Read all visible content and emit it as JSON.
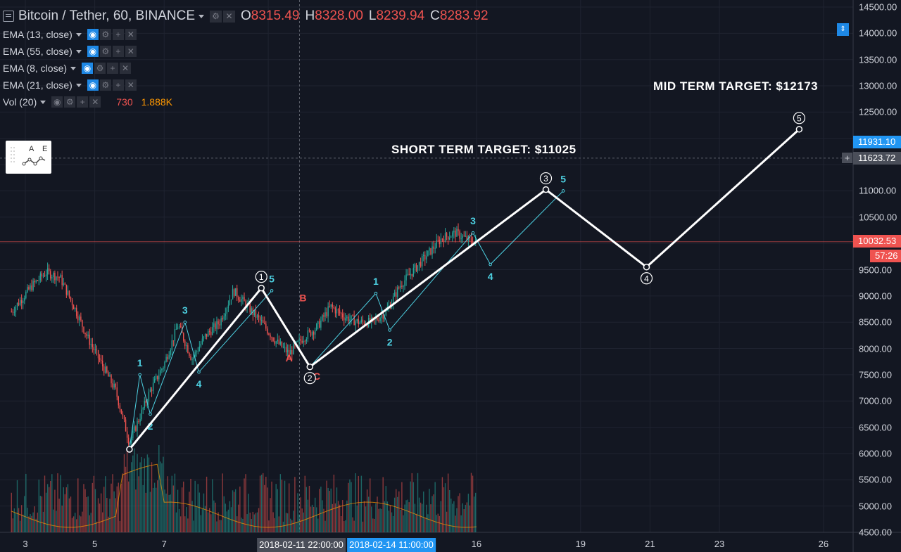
{
  "header": {
    "title": "Bitcoin / Tether, 60, BINANCE",
    "open_label": "O",
    "open": "8315.49",
    "high_label": "H",
    "high": "8328.00",
    "low_label": "L",
    "low": "8239.94",
    "close_label": "C",
    "close": "8283.92"
  },
  "indicators": [
    {
      "label": "EMA (13, close)"
    },
    {
      "label": "EMA (55, close)"
    },
    {
      "label": "EMA (8, close)"
    },
    {
      "label": "EMA (21, close)"
    },
    {
      "label": "Vol (20)",
      "value_a": "730",
      "value_b": "1.888K"
    }
  ],
  "drawing_tool": {
    "letter_a": "A",
    "letter_e": "E"
  },
  "annotations": {
    "mid_target": "MID TERM TARGET: $12173",
    "short_target": "SHORT TERM TARGET: $11025"
  },
  "price_axis": {
    "ticks": [
      "14500.00",
      "14000.00",
      "13500.00",
      "13000.00",
      "12500.00",
      "11000.00",
      "10500.00",
      "9500.00",
      "9000.00",
      "8500.00",
      "8000.00",
      "7500.00",
      "7000.00",
      "6500.00",
      "6000.00",
      "5500.00",
      "5000.00",
      "4500.00"
    ],
    "tick_values": [
      14500,
      14000,
      13500,
      13000,
      12500,
      11000,
      10500,
      9500,
      9000,
      8500,
      8000,
      7500,
      7000,
      6500,
      6000,
      5500,
      5000,
      4500
    ],
    "badge_target": "11931.10",
    "badge_crosshair": "11623.72",
    "badge_last": "10032.53",
    "badge_countdown": "57:26"
  },
  "time_axis": {
    "labels": [
      "3",
      "5",
      "7",
      "10",
      "16",
      "19",
      "21",
      "23",
      "26"
    ],
    "crosshair_label": "2018-02-11 22:00:00",
    "range_label": "2018-02-14 11:00:00"
  },
  "colors": {
    "bull": "#26a69a",
    "bear": "#ef5350",
    "wave_main": "#ffffff",
    "wave_sub": "#4dd0e1",
    "wave_corr": "#ef5350",
    "accent": "#1e88e5"
  },
  "chart_data": {
    "type": "candlestick",
    "symbol": "Bitcoin / Tether",
    "interval": "60",
    "exchange": "BINANCE",
    "ylim": [
      4500,
      14500
    ],
    "ohlc_last": {
      "open": 8315.49,
      "high": 8328.0,
      "low": 8239.94,
      "close": 8283.92
    },
    "price_path_x": [
      2.6,
      3.2,
      3.6,
      4.0,
      4.4,
      4.8,
      5.2,
      5.6,
      6.0,
      6.3,
      6.6,
      7.0,
      7.4,
      7.8,
      8.2,
      8.6,
      9.0,
      9.4,
      9.8,
      10.2,
      10.6,
      11.0,
      11.4,
      11.8,
      12.2,
      12.6,
      13.0,
      13.4,
      13.8,
      14.2,
      14.6,
      15.0,
      15.4,
      15.8,
      16.0
    ],
    "price_path_y": [
      8700,
      9200,
      9450,
      9350,
      8800,
      8200,
      7700,
      7200,
      6200,
      6700,
      7200,
      7700,
      8450,
      7800,
      8250,
      8500,
      9100,
      8800,
      8500,
      8150,
      7900,
      8200,
      8400,
      8800,
      8600,
      8500,
      8500,
      8700,
      9200,
      9500,
      9800,
      10100,
      10200,
      10050,
      10032.53
    ],
    "ema_series_note": "",
    "elliott_main": [
      {
        "label": "1",
        "x": 9.8,
        "y": 9150
      },
      {
        "label": "2",
        "x": 11.2,
        "y": 7650
      },
      {
        "label": "3",
        "x": 18.0,
        "y": 11025
      },
      {
        "label": "4",
        "x": 20.9,
        "y": 9550
      },
      {
        "label": "5",
        "x": 25.3,
        "y": 12173
      }
    ],
    "elliott_start": {
      "x": 6.0,
      "y": 6080
    },
    "elliott_sub_1": [
      {
        "label": "1",
        "x": 6.3,
        "y": 7500
      },
      {
        "label": "2",
        "x": 6.6,
        "y": 6750
      },
      {
        "label": "3",
        "x": 7.6,
        "y": 8500
      },
      {
        "label": "4",
        "x": 8.0,
        "y": 7550
      },
      {
        "label": "5",
        "x": 10.1,
        "y": 9100
      }
    ],
    "elliott_sub_3": [
      {
        "label": "1",
        "x": 13.1,
        "y": 9050
      },
      {
        "label": "2",
        "x": 13.5,
        "y": 8350
      },
      {
        "label": "3",
        "x": 15.9,
        "y": 10200
      },
      {
        "label": "4",
        "x": 16.4,
        "y": 9600
      },
      {
        "label": "5",
        "x": 18.5,
        "y": 11000
      }
    ],
    "correction": [
      {
        "label": "A",
        "x": 10.6,
        "y": 8050
      },
      {
        "label": "B",
        "x": 11.0,
        "y": 8600
      },
      {
        "label": "C",
        "x": 11.4,
        "y": 7700
      }
    ],
    "targets": {
      "short_term": 11025,
      "mid_term": 12173
    },
    "last_price": 10032.53,
    "target_line": 11623.72,
    "volume_label": "Vol (20)"
  }
}
